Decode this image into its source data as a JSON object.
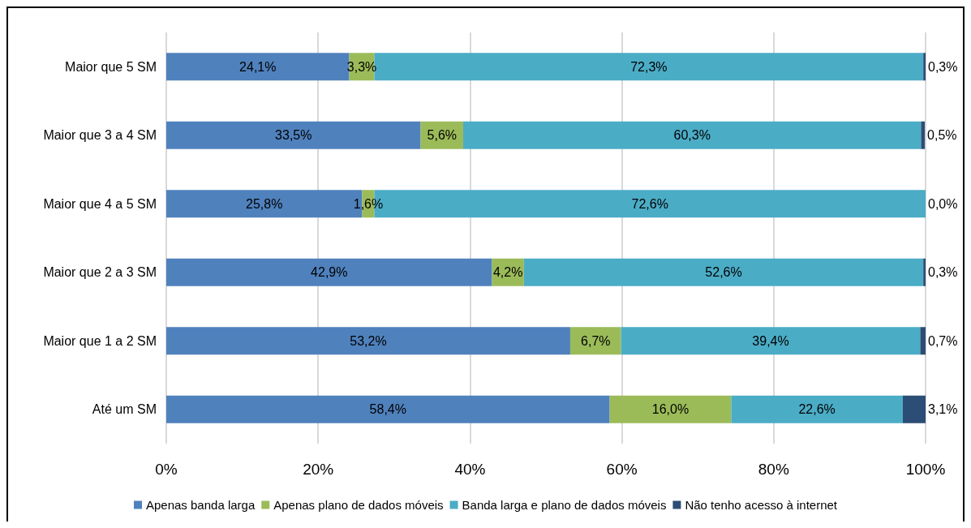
{
  "chart_data": {
    "type": "bar",
    "orientation": "horizontal",
    "stacked": true,
    "categories": [
      "Maior que 5 SM",
      "Maior que 3 a 4 SM",
      "Maior que 4 a 5 SM",
      "Maior que 2 a 3 SM",
      "Maior que 1 a 2 SM",
      "Até um SM"
    ],
    "series": [
      {
        "name": "Apenas banda larga",
        "color": "#4f81bd",
        "values": [
          24.1,
          33.5,
          25.8,
          42.9,
          53.2,
          58.4
        ],
        "value_labels": [
          "24,1%",
          "33,5%",
          "25,8%",
          "42,9%",
          "53,2%",
          "58,4%"
        ]
      },
      {
        "name": "Apenas plano de dados móveis",
        "color": "#9bbb59",
        "values": [
          3.3,
          5.6,
          1.6,
          4.2,
          6.7,
          16.0
        ],
        "value_labels": [
          "3,3%",
          "5,6%",
          "1,6%",
          "4,2%",
          "6,7%",
          "16,0%"
        ]
      },
      {
        "name": "Banda larga e plano de dados móveis",
        "color": "#4bacc6",
        "values": [
          72.3,
          60.3,
          72.6,
          52.6,
          39.4,
          22.6
        ],
        "value_labels": [
          "72,3%",
          "60,3%",
          "72,6%",
          "52,6%",
          "39,4%",
          "22,6%"
        ]
      },
      {
        "name": "Não tenho acesso à internet",
        "color": "#2c4d75",
        "values": [
          0.3,
          0.5,
          0.0,
          0.3,
          0.7,
          3.1
        ],
        "value_labels": [
          "0,3%",
          "0,5%",
          "0,0%",
          "0,3%",
          "0,7%",
          "3,1%"
        ]
      }
    ],
    "xlim": [
      0,
      100
    ],
    "xticks": [
      {
        "value": 0,
        "label": "0%"
      },
      {
        "value": 20,
        "label": "20%"
      },
      {
        "value": 40,
        "label": "40%"
      },
      {
        "value": 60,
        "label": "60%"
      },
      {
        "value": 80,
        "label": "80%"
      },
      {
        "value": 100,
        "label": "100%"
      }
    ],
    "grid": "x",
    "legend": "bottom"
  }
}
